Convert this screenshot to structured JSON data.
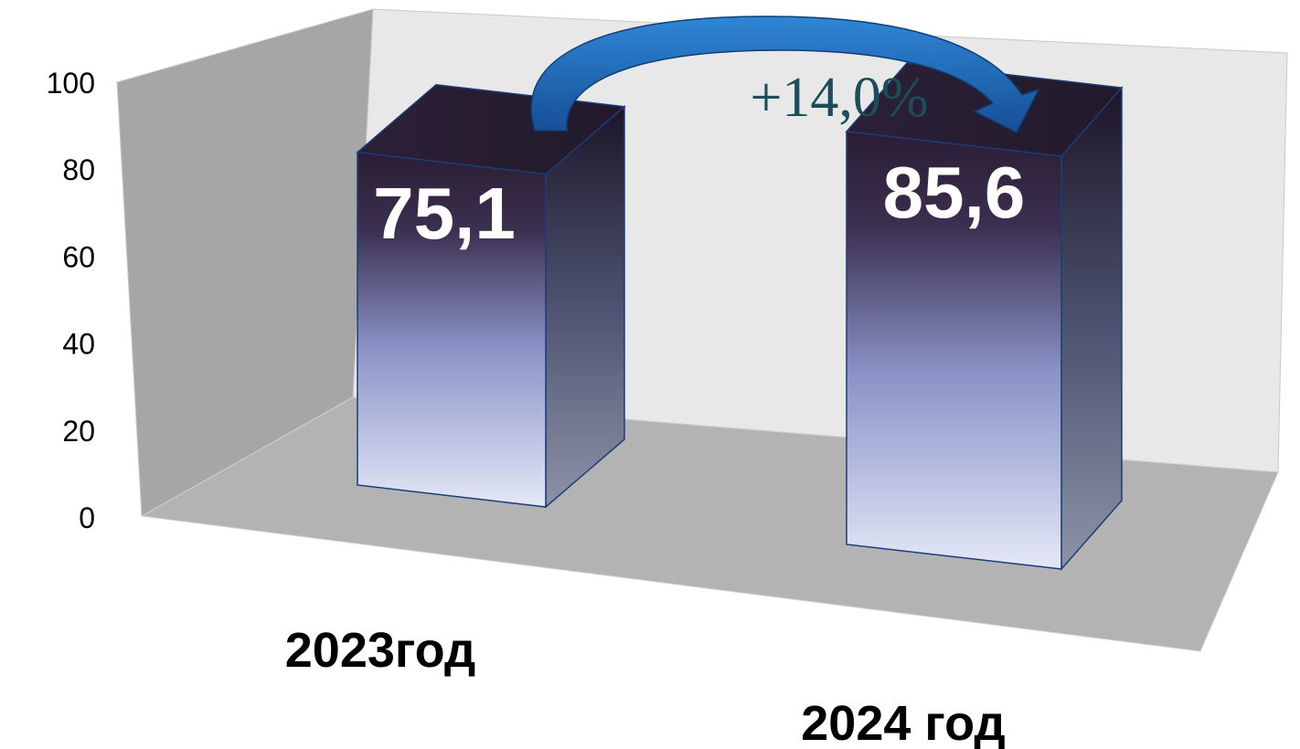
{
  "chart_data": {
    "type": "bar",
    "categories": [
      "2023год",
      "2024 год"
    ],
    "values": [
      75.1,
      85.6
    ],
    "value_labels": [
      "75,1",
      "85,6"
    ],
    "ylim": [
      0,
      100
    ],
    "yticks": [
      "0",
      "20",
      "40",
      "60",
      "80",
      "100"
    ],
    "annotation": "+14,0%",
    "colors": {
      "bar_top": "#2a1d33",
      "bar_mid": "#8a92c6",
      "bar_bottom": "#e4e8f7",
      "bar_side_top": "#1d1528",
      "bar_side_bottom": "#8d93a6",
      "bar_edge": "#1c3c7a",
      "back_wall": "#e8e8e8",
      "side_wall": "#a6a6a6",
      "floor": "#b3b3b3",
      "arrow": "#1f6fbf",
      "annotation_text": "#1a4e5a"
    }
  }
}
